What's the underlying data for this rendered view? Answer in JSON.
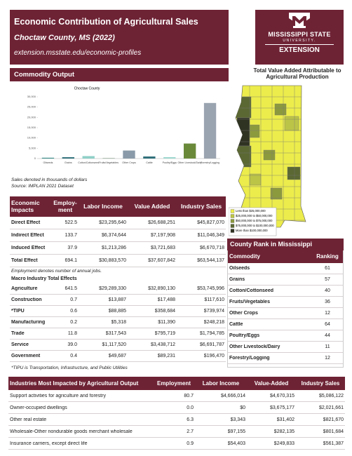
{
  "header": {
    "title": "Economic Contribution of Agricultural Sales",
    "subtitle": "Choctaw County, MS (2022)",
    "url": "extension.msstate.edu/economic-profiles"
  },
  "logo": {
    "line1": "MISSISSIPPI STATE",
    "line2": "UNIVERSITY.",
    "line3": "EXTENSION"
  },
  "map": {
    "title": "Total Value Added Attributable to Agricultural Production",
    "legend": [
      {
        "label": "Less than $25,000,000",
        "color": "#ecec4c"
      },
      {
        "label": "$25,000,000 to $50,000,000",
        "color": "#bcc447"
      },
      {
        "label": "$50,000,000 to $75,000,000",
        "color": "#8c9a3e"
      },
      {
        "label": "$75,000,000 to $100,000,000",
        "color": "#5b6833"
      },
      {
        "label": "More than $100,000,000",
        "color": "#2f3322"
      }
    ]
  },
  "commodity_output": {
    "heading": "Commodity Output",
    "chart": {
      "type": "bar",
      "title": "Choctaw County",
      "categories": [
        "Oilseeds",
        "Grains",
        "Cotton/Cottonseed",
        "Fruits/Vegetables",
        "Other Crops",
        "Cattle",
        "Poultry/Eggs",
        "Other Livestock/Dairy",
        "Forestry/Logging"
      ],
      "values": [
        400,
        650,
        1200,
        300,
        3900,
        1000,
        700,
        7300,
        27000
      ],
      "colors": [
        "#3f8f8c",
        "#2e6f7a",
        "#8fd0c8",
        "#a7b9a8",
        "#8a9aa8",
        "#2e6f7a",
        "#9fd8d0",
        "#6a8a3a",
        "#9aa4b0"
      ],
      "ylim": [
        0,
        30000
      ],
      "yticks": [
        0,
        {
          "value": 5000,
          "label": "5,000"
        },
        {
          "value": 10000,
          "label": "10,000"
        },
        {
          "value": 15000,
          "label": "15,000"
        },
        {
          "value": 20000,
          "label": "20,000"
        },
        {
          "value": 25000,
          "label": "25,000"
        },
        {
          "value": 30000,
          "label": "30,000"
        }
      ]
    },
    "notes": [
      "Sales denoted in thousands of dollars",
      "Source: IMPLAN 2021 Dataset"
    ]
  },
  "economic_impacts": {
    "columns": [
      "Economic Impacts",
      "Employ-ment",
      "Labor Income",
      "Value Added",
      "Industry Sales"
    ],
    "rows": [
      [
        "Direct Effect",
        "522.5",
        "$23,295,640",
        "$26,688,251",
        "$45,827,070"
      ],
      [
        "Indirect Effect",
        "133.7",
        "$6,374,644",
        "$7,197,908",
        "$11,046,349"
      ],
      [
        "Induced Effect",
        "37.9",
        "$1,213,286",
        "$3,721,683",
        "$6,670,718"
      ],
      [
        "Total Effect",
        "694.1",
        "$30,883,570",
        "$37,607,842",
        "$63,544,137"
      ]
    ],
    "note": "Employment denotes number of annual jobs.",
    "macro_heading": "Macro Industry Total Effects",
    "macro_rows": [
      [
        "Agriculture",
        "641.5",
        "$29,289,330",
        "$32,890,130",
        "$53,745,996"
      ],
      [
        "Construction",
        "0.7",
        "$13,887",
        "$17,488",
        "$117,610"
      ],
      [
        "*TIPU",
        "0.6",
        "$88,885",
        "$358,684",
        "$739,974"
      ],
      [
        "Manufacturing",
        "0.2",
        "$5,318",
        "$11,390",
        "$248,218"
      ],
      [
        "Trade",
        "11.8",
        "$317,543",
        "$795,719",
        "$1,794,785"
      ],
      [
        "Service",
        "39.0",
        "$1,117,520",
        "$3,438,712",
        "$6,691,787"
      ],
      [
        "Government",
        "0.4",
        "$49,687",
        "$89,231",
        "$196,470"
      ]
    ],
    "footnote": "*TIPU is Transportation, Infrastructure, and Public Utilities"
  },
  "county_rank": {
    "title": "County Rank in Mississippi",
    "columns": [
      "Commodity",
      "Ranking"
    ],
    "rows": [
      [
        "Oilseeds",
        "61"
      ],
      [
        "Grains",
        "57"
      ],
      [
        "Cotton/Cottonseed",
        "40"
      ],
      [
        "Fruits/Vegetables",
        "36"
      ],
      [
        "Other Crops",
        "12"
      ],
      [
        "Cattle",
        "64"
      ],
      [
        "Poultry/Eggs",
        "44"
      ],
      [
        "Other Livestock/Dairy",
        "11"
      ],
      [
        "Forestry/Logging",
        "12"
      ]
    ]
  },
  "industries": {
    "columns": [
      "Industries Most Impacted by Agricultural Output",
      "Employment",
      "Labor Income",
      "Value-Added",
      "Industry Sales"
    ],
    "rows": [
      [
        "Support activities for agriculture and forestry",
        "80.7",
        "$4,666,014",
        "$4,670,315",
        "$5,086,122"
      ],
      [
        "Owner-occupied dwellings",
        "0.0",
        "$0",
        "$3,675,177",
        "$2,021,661"
      ],
      [
        "Other real estate",
        "6.3",
        "$3,343",
        "$31,402",
        "$821,670"
      ],
      [
        "Wholesale-Other nondurable goods merchant wholesale",
        "2.7",
        "$97,155",
        "$282,135",
        "$801,684"
      ],
      [
        "Insurance carriers, except direct life",
        "0.9",
        "$54,403",
        "$249,833",
        "$561,387"
      ]
    ]
  }
}
